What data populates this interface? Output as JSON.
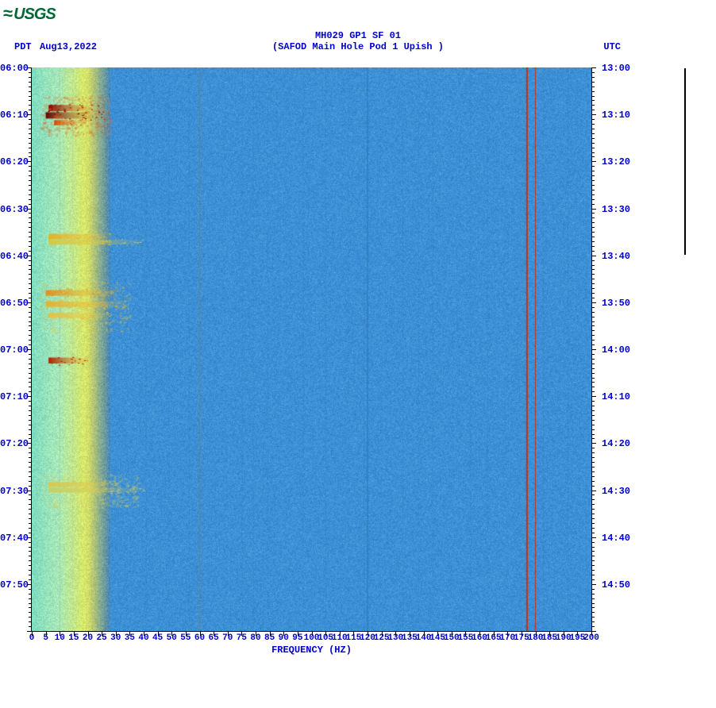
{
  "logo_text": "USGS",
  "title_line1": "MH029 GP1 SF 01",
  "title_line2": "(SAFOD Main Hole Pod 1 Upish )",
  "pdt_label": "PDT",
  "date_label": "Aug13,2022",
  "utc_label": "UTC",
  "xlabel": "FREQUENCY (HZ)",
  "spectrogram": {
    "type": "spectrogram",
    "freq_min": 0,
    "freq_max": 200,
    "freq_tick_step": 5,
    "time_start_pdt_min": 360,
    "time_end_pdt_min": 480,
    "left_ticks": [
      "06:00",
      "06:10",
      "06:20",
      "06:30",
      "06:40",
      "06:50",
      "07:00",
      "07:10",
      "07:20",
      "07:30",
      "07:40",
      "07:50"
    ],
    "right_ticks": [
      "13:00",
      "13:10",
      "13:20",
      "13:30",
      "13:40",
      "13:50",
      "14:00",
      "14:10",
      "14:20",
      "14:30",
      "14:40",
      "14:50"
    ],
    "x_ticks": [
      0,
      5,
      10,
      15,
      20,
      25,
      30,
      35,
      40,
      45,
      50,
      55,
      60,
      65,
      70,
      75,
      80,
      85,
      90,
      95,
      100,
      105,
      110,
      115,
      120,
      125,
      130,
      135,
      140,
      145,
      150,
      155,
      160,
      165,
      170,
      175,
      180,
      185,
      190,
      195,
      200
    ],
    "background_color": "#3a8fd8",
    "noise_color_low": "#2f7fca",
    "noise_color_high": "#4aa0e0",
    "lowfreq_band": {
      "from": 0,
      "to": 28,
      "colors": [
        "#7fdcc0",
        "#a8e8b8",
        "#d8e868",
        "#f0d040"
      ]
    },
    "vertical_lines": [
      {
        "freq": 60,
        "color": "#c06820",
        "width": 1
      },
      {
        "freq": 120,
        "color": "#3070b0",
        "width": 1
      },
      {
        "freq": 177,
        "color": "#d03000",
        "width": 2
      },
      {
        "freq": 180,
        "color": "#d03000",
        "width": 1
      }
    ],
    "hot_events": [
      {
        "time_frac": 0.072,
        "freq_from": 6,
        "freq_to": 24,
        "intensity": 0.95,
        "color": "#8b0000"
      },
      {
        "time_frac": 0.085,
        "freq_from": 5,
        "freq_to": 26,
        "intensity": 1.0,
        "color": "#660000"
      },
      {
        "time_frac": 0.098,
        "freq_from": 8,
        "freq_to": 18,
        "intensity": 0.7,
        "color": "#d84000"
      },
      {
        "time_frac": 0.3,
        "freq_from": 6,
        "freq_to": 30,
        "intensity": 0.75,
        "color": "#e8b020"
      },
      {
        "time_frac": 0.31,
        "freq_from": 6,
        "freq_to": 40,
        "intensity": 0.6,
        "color": "#d8c840"
      },
      {
        "time_frac": 0.4,
        "freq_from": 5,
        "freq_to": 32,
        "intensity": 0.85,
        "color": "#e09020"
      },
      {
        "time_frac": 0.42,
        "freq_from": 5,
        "freq_to": 35,
        "intensity": 0.8,
        "color": "#e8b030"
      },
      {
        "time_frac": 0.44,
        "freq_from": 6,
        "freq_to": 28,
        "intensity": 0.7,
        "color": "#e8c040"
      },
      {
        "time_frac": 0.52,
        "freq_from": 6,
        "freq_to": 22,
        "intensity": 0.9,
        "color": "#b02000"
      },
      {
        "time_frac": 0.74,
        "freq_from": 6,
        "freq_to": 32,
        "intensity": 0.6,
        "color": "#d8c850"
      },
      {
        "time_frac": 0.75,
        "freq_from": 6,
        "freq_to": 40,
        "intensity": 0.55,
        "color": "#c8d060"
      }
    ],
    "axis_color": "#000000",
    "label_color": "#0000cc",
    "label_fontsize": 12,
    "title_fontsize": 12
  }
}
